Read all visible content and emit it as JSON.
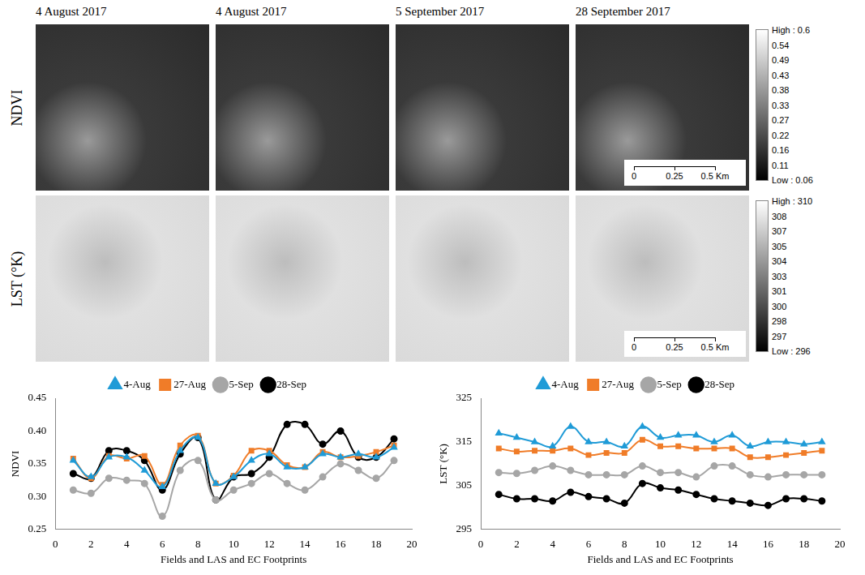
{
  "maps": {
    "dates": [
      "4 August 2017",
      "4 August 2017",
      "5 September 2017",
      "28 September 2017"
    ],
    "rows": [
      {
        "label": "NDVI",
        "colorbar": {
          "ticks": [
            {
              "value": 0.6,
              "label": "High : 0.6"
            },
            0.54,
            0.49,
            0.43,
            0.38,
            0.33,
            0.27,
            0.22,
            0.16,
            0.11,
            {
              "value": 0.06,
              "label": "Low : 0.06"
            }
          ]
        }
      },
      {
        "label": "LST (°K)",
        "colorbar": {
          "ticks": [
            {
              "value": 310,
              "label": "High : 310"
            },
            308,
            307,
            305,
            304,
            303,
            301,
            300,
            298,
            297,
            {
              "value": 296,
              "label": "Low : 296"
            }
          ]
        }
      }
    ],
    "scale_bar": {
      "ticks": [
        0,
        0.25,
        {
          "value": 0.5,
          "label": "0.5 Km"
        }
      ]
    }
  },
  "chart_data": [
    {
      "type": "line",
      "x_label": "Fields and LAS and EC Footprints",
      "y_label": "NDVI",
      "x": [
        1,
        2,
        3,
        4,
        5,
        6,
        7,
        8,
        9,
        10,
        11,
        12,
        13,
        14,
        15,
        16,
        17,
        18,
        19
      ],
      "xlim": [
        0,
        20
      ],
      "xticks": [
        0,
        2,
        4,
        6,
        8,
        10,
        12,
        14,
        16,
        18,
        20
      ],
      "ylim": [
        0.25,
        0.45
      ],
      "yticks": [
        0.25,
        {
          "value": 0.3,
          "label": "0.30"
        },
        0.35,
        {
          "value": 0.4,
          "label": "0.40"
        },
        0.45
      ],
      "grid": false,
      "legend": "top",
      "series": [
        {
          "name": "4-Aug",
          "color": "#1f9bd7",
          "marker": "triangle",
          "values": [
            0.355,
            0.33,
            0.36,
            0.36,
            0.34,
            0.315,
            0.37,
            0.39,
            0.32,
            0.33,
            0.355,
            0.365,
            0.345,
            0.345,
            0.365,
            0.36,
            0.365,
            0.36,
            0.375
          ]
        },
        {
          "name": "27-Aug",
          "color": "#f07c28",
          "marker": "square",
          "values": [
            0.358,
            0.328,
            0.362,
            0.358,
            0.362,
            0.318,
            0.378,
            0.393,
            0.32,
            0.332,
            0.37,
            0.37,
            0.348,
            0.345,
            0.368,
            0.36,
            0.362,
            0.368,
            0.378
          ]
        },
        {
          "name": "5-Sep",
          "color": "#a6a6a6",
          "marker": "circle",
          "values": [
            0.31,
            0.305,
            0.328,
            0.325,
            0.32,
            0.27,
            0.34,
            0.355,
            0.295,
            0.31,
            0.32,
            0.335,
            0.32,
            0.31,
            0.33,
            0.35,
            0.34,
            0.328,
            0.355
          ]
        },
        {
          "name": "28-Sep",
          "color": "#000000",
          "marker": "circle",
          "values": [
            0.335,
            0.328,
            0.37,
            0.37,
            0.355,
            0.31,
            0.365,
            0.39,
            0.295,
            0.33,
            0.335,
            0.36,
            0.41,
            0.41,
            0.38,
            0.4,
            0.36,
            0.36,
            0.388
          ]
        }
      ]
    },
    {
      "type": "line",
      "x_label": "Fields and LAS and EC Footprints",
      "y_label": "LST (°K)",
      "x": [
        1,
        2,
        3,
        4,
        5,
        6,
        7,
        8,
        9,
        10,
        11,
        12,
        13,
        14,
        15,
        16,
        17,
        18,
        19
      ],
      "xlim": [
        0,
        20
      ],
      "xticks": [
        0,
        2,
        4,
        6,
        8,
        10,
        12,
        14,
        16,
        18,
        20
      ],
      "ylim": [
        295,
        325
      ],
      "yticks": [
        295,
        305,
        315,
        325
      ],
      "grid": false,
      "legend": "top",
      "series": [
        {
          "name": "4-Aug",
          "color": "#1f9bd7",
          "marker": "triangle",
          "values": [
            317,
            316,
            315,
            314,
            318.5,
            315,
            315,
            314,
            318.5,
            316,
            316.5,
            316.5,
            315,
            316.5,
            314,
            315,
            315,
            314.5,
            315
          ]
        },
        {
          "name": "27-Aug",
          "color": "#f07c28",
          "marker": "square",
          "values": [
            313.5,
            312.8,
            313,
            313,
            313.5,
            312,
            312.5,
            312.5,
            315.5,
            314,
            314,
            313.5,
            313.5,
            313.5,
            311.5,
            311.5,
            312,
            312.5,
            313
          ]
        },
        {
          "name": "5-Sep",
          "color": "#a6a6a6",
          "marker": "circle",
          "values": [
            308,
            307.8,
            308.5,
            309.5,
            308.5,
            307.5,
            307.5,
            307.5,
            309.5,
            308,
            308,
            307,
            309.5,
            309.5,
            307.5,
            307,
            307.5,
            307.5,
            307.5
          ]
        },
        {
          "name": "28-Sep",
          "color": "#000000",
          "marker": "circle",
          "values": [
            303,
            302,
            302,
            301.5,
            303.5,
            302.5,
            302,
            301,
            305.5,
            304.5,
            304,
            303,
            302,
            301.5,
            301,
            300.5,
            302,
            302,
            301.5
          ]
        }
      ]
    }
  ]
}
